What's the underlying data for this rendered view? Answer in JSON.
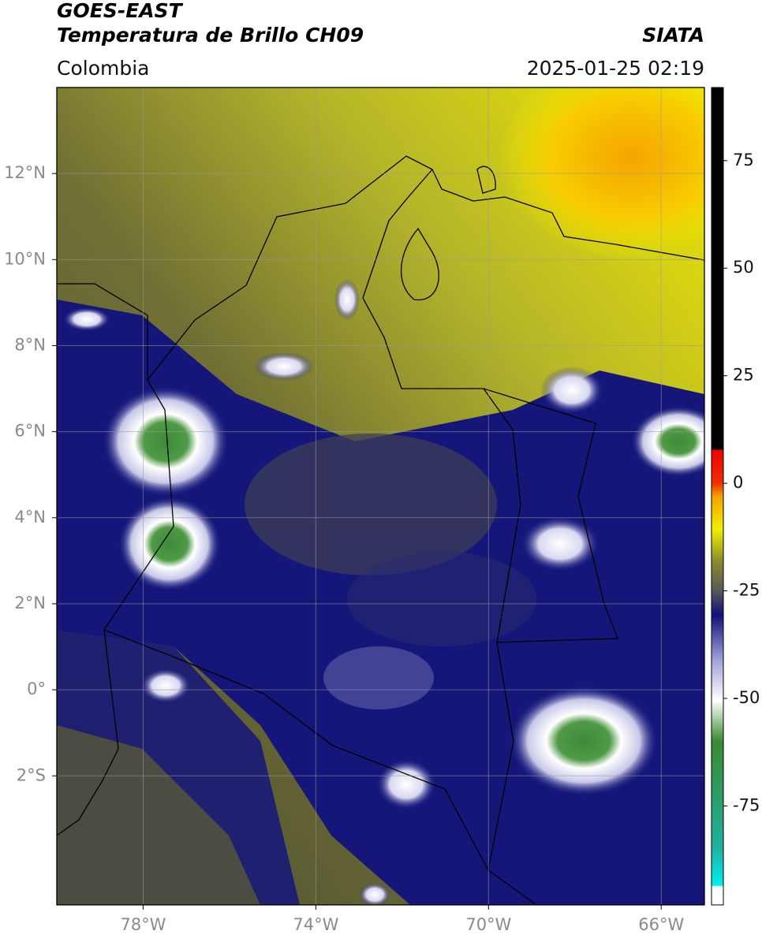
{
  "header": {
    "title": "GOES-EAST",
    "subtitle": "Temperatura de Brillo CH09",
    "source": "SIATA",
    "region": "Colombia",
    "datetime": "2025-01-25 02:19"
  },
  "map": {
    "xlim": [
      -80,
      -65
    ],
    "ylim": [
      -5,
      14
    ],
    "xticks": [
      {
        "value": -78,
        "label": "78°W"
      },
      {
        "value": -74,
        "label": "74°W"
      },
      {
        "value": -70,
        "label": "70°W"
      },
      {
        "value": -66,
        "label": "66°W"
      }
    ],
    "yticks": [
      {
        "value": 12,
        "label": "12°N"
      },
      {
        "value": 10,
        "label": "10°N"
      },
      {
        "value": 8,
        "label": "8°N"
      },
      {
        "value": 6,
        "label": "6°N"
      },
      {
        "value": 4,
        "label": "4°N"
      },
      {
        "value": 2,
        "label": "2°N"
      },
      {
        "value": 0,
        "label": "0°"
      },
      {
        "value": -2,
        "label": "2°S"
      }
    ],
    "grid": true
  },
  "colorbar": {
    "lim": [
      -98,
      92
    ],
    "ticks": [
      75,
      50,
      25,
      0,
      -25,
      -50,
      -75
    ]
  }
}
